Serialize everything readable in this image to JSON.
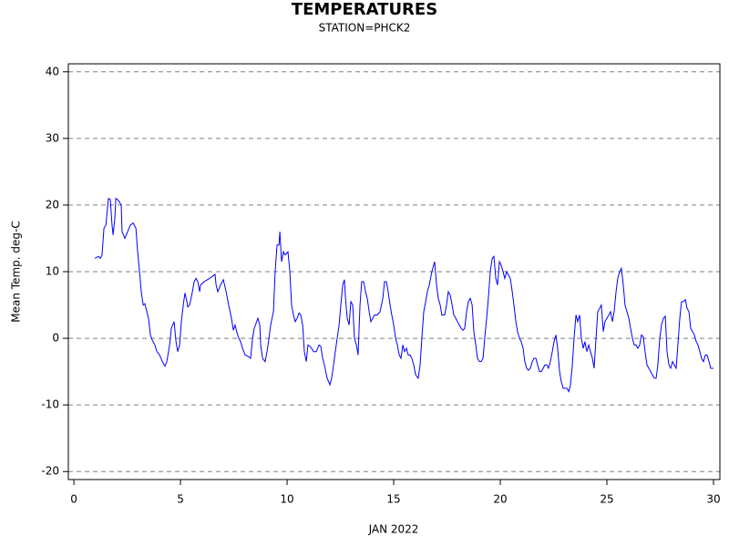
{
  "chart_data": {
    "type": "line",
    "title": "TEMPERATURES",
    "subtitle": "STATION=PHCK2",
    "x_label": "JAN 2022",
    "y_label": "Mean Temp. deg-C",
    "xlim": [
      -0.26,
      30.3
    ],
    "ylim": [
      -21.2,
      41.2
    ],
    "xticks": [
      0,
      5,
      10,
      15,
      20,
      25,
      30
    ],
    "yticks": [
      -20,
      -10,
      0,
      10,
      20,
      30,
      40
    ],
    "grid": true,
    "color": "#0000ff",
    "x": [
      0.98,
      1.15,
      1.24,
      1.32,
      1.41,
      1.5,
      1.62,
      1.71,
      1.79,
      1.84,
      1.92,
      1.97,
      2.09,
      2.22,
      2.26,
      2.39,
      2.52,
      2.65,
      2.78,
      2.91,
      2.99,
      3.08,
      3.16,
      3.25,
      3.33,
      3.42,
      3.5,
      3.59,
      3.68,
      3.8,
      3.89,
      4.02,
      4.15,
      4.27,
      4.36,
      4.49,
      4.57,
      4.7,
      4.79,
      4.87,
      4.96,
      5.04,
      5.13,
      5.21,
      5.3,
      5.34,
      5.43,
      5.56,
      5.64,
      5.73,
      5.81,
      5.9,
      5.94,
      6.11,
      6.37,
      6.62,
      6.67,
      6.75,
      6.88,
      7.01,
      7.14,
      7.26,
      7.39,
      7.48,
      7.56,
      7.65,
      7.74,
      7.82,
      7.91,
      8.03,
      8.16,
      8.29,
      8.38,
      8.46,
      8.63,
      8.72,
      8.76,
      8.85,
      8.97,
      9.06,
      9.15,
      9.23,
      9.36,
      9.44,
      9.53,
      9.62,
      9.66,
      9.74,
      9.83,
      9.91,
      10.04,
      10.13,
      10.21,
      10.3,
      10.38,
      10.47,
      10.56,
      10.64,
      10.73,
      10.81,
      10.9,
      10.98,
      11.07,
      11.15,
      11.24,
      11.37,
      11.5,
      11.58,
      11.67,
      11.75,
      11.88,
      12.01,
      12.09,
      12.18,
      12.26,
      12.35,
      12.44,
      12.52,
      12.61,
      12.69,
      12.74,
      12.82,
      12.91,
      12.99,
      13.08,
      13.16,
      13.25,
      13.33,
      13.42,
      13.5,
      13.59,
      13.68,
      13.76,
      13.85,
      13.93,
      14.02,
      14.1,
      14.23,
      14.36,
      14.49,
      14.57,
      14.66,
      14.74,
      14.83,
      14.91,
      15.0,
      15.09,
      15.17,
      15.26,
      15.34,
      15.43,
      15.51,
      15.6,
      15.68,
      15.77,
      15.85,
      15.94,
      16.03,
      16.15,
      16.24,
      16.32,
      16.41,
      16.5,
      16.58,
      16.67,
      16.79,
      16.92,
      17.01,
      17.09,
      17.18,
      17.26,
      17.39,
      17.48,
      17.56,
      17.65,
      17.74,
      17.82,
      17.91,
      17.99,
      18.08,
      18.16,
      18.25,
      18.33,
      18.42,
      18.5,
      18.59,
      18.68,
      18.76,
      18.85,
      18.93,
      19.02,
      19.1,
      19.19,
      19.27,
      19.36,
      19.44,
      19.53,
      19.62,
      19.7,
      19.79,
      19.87,
      19.96,
      20.04,
      20.13,
      20.21,
      20.3,
      20.38,
      20.47,
      20.56,
      20.64,
      20.73,
      20.81,
      20.9,
      20.98,
      21.07,
      21.15,
      21.24,
      21.32,
      21.41,
      21.5,
      21.58,
      21.67,
      21.75,
      21.84,
      21.92,
      22.01,
      22.09,
      22.18,
      22.26,
      22.35,
      22.44,
      22.52,
      22.61,
      22.69,
      22.78,
      22.86,
      22.95,
      23.03,
      23.12,
      23.21,
      23.29,
      23.38,
      23.46,
      23.55,
      23.63,
      23.72,
      23.8,
      23.89,
      23.97,
      24.06,
      24.15,
      24.23,
      24.32,
      24.4,
      24.49,
      24.57,
      24.66,
      24.74,
      24.83,
      24.91,
      25.0,
      25.09,
      25.17,
      25.26,
      25.34,
      25.43,
      25.51,
      25.6,
      25.68,
      25.77,
      25.85,
      25.94,
      26.03,
      26.11,
      26.2,
      26.28,
      26.37,
      26.45,
      26.54,
      26.62,
      26.71,
      26.79,
      26.88,
      26.97,
      27.05,
      27.14,
      27.22,
      27.31,
      27.39,
      27.48,
      27.56,
      27.65,
      27.74,
      27.82,
      27.91,
      27.99,
      28.08,
      28.16,
      28.25,
      28.33,
      28.42,
      28.5,
      28.59,
      28.68,
      28.76,
      28.85,
      28.93,
      29.02,
      29.1,
      29.19,
      29.27,
      29.36,
      29.44,
      29.53,
      29.62,
      29.7,
      29.79,
      29.87,
      30.0
    ],
    "values": [
      12,
      12.3,
      12,
      12.5,
      16.5,
      17,
      21,
      20.8,
      17,
      15.5,
      18,
      21,
      20.7,
      20,
      16,
      15,
      16,
      17,
      17.3,
      16.5,
      13,
      10,
      7,
      5,
      5.2,
      4,
      3,
      0.5,
      -0.3,
      -1,
      -2,
      -2.5,
      -3.5,
      -4.2,
      -3.5,
      -1,
      1.5,
      2.5,
      -0.5,
      -2,
      -1,
      2.5,
      5,
      6.8,
      5.5,
      4.7,
      5,
      7,
      8.5,
      9,
      8.5,
      7,
      8,
      8.5,
      9,
      9.6,
      8,
      7,
      8,
      8.8,
      7,
      5,
      3,
      1.2,
      2,
      0.8,
      0,
      -0.5,
      -1.5,
      -2.5,
      -2.7,
      -3,
      0,
      1.5,
      3,
      2,
      -1,
      -3,
      -3.5,
      -2,
      0,
      2,
      4,
      10,
      14,
      14,
      16,
      11.5,
      13,
      12.5,
      13,
      10,
      5,
      3.5,
      2.5,
      3,
      3.8,
      3.5,
      2,
      -2,
      -3.5,
      -1,
      -1.2,
      -1.5,
      -2,
      -2,
      -1,
      -1.2,
      -3,
      -4,
      -6,
      -7,
      -6,
      -4,
      -2,
      0,
      2,
      5,
      8,
      8.8,
      6,
      3,
      2,
      5.5,
      5,
      0,
      -1,
      -2.5,
      5,
      8.5,
      8.5,
      7,
      6,
      4,
      2.5,
      3,
      3.5,
      3.5,
      4,
      6,
      8.5,
      8.5,
      7,
      5,
      3.5,
      2,
      0,
      -1,
      -2.5,
      -3,
      -1,
      -2,
      -1.5,
      -2.5,
      -2.5,
      -3,
      -4,
      -5.5,
      -6,
      -4,
      0,
      4,
      5.5,
      7,
      8,
      10,
      11.5,
      8,
      6,
      5,
      3.5,
      3.5,
      5,
      7,
      6.5,
      5,
      3.5,
      3,
      2.5,
      2,
      1.5,
      1.2,
      1.5,
      4,
      5.5,
      6,
      5,
      1,
      -1,
      -3,
      -3.5,
      -3.5,
      -3,
      0,
      3,
      6,
      10,
      12,
      12.3,
      9,
      8,
      11.5,
      11,
      10,
      9,
      10,
      9.5,
      9,
      7,
      5,
      2.5,
      1,
      0,
      -0.5,
      -1.5,
      -3.5,
      -4.5,
      -4.8,
      -4.5,
      -3.5,
      -3,
      -3,
      -4,
      -5,
      -5,
      -4.5,
      -4,
      -4,
      -4.5,
      -3.5,
      -2,
      -0.5,
      0.5,
      -1.5,
      -5,
      -6.5,
      -7.5,
      -7.5,
      -7.5,
      -8,
      -7,
      -4,
      0,
      3.5,
      2.5,
      3.5,
      0,
      -1.5,
      -0.5,
      -2,
      -1,
      -2,
      -3,
      -4.5,
      0,
      4,
      4.5,
      5,
      1,
      2.5,
      3,
      3.5,
      4,
      2.5,
      4,
      7,
      9,
      10,
      10.5,
      8,
      5,
      4,
      3,
      1.5,
      0,
      -1,
      -1,
      -1.5,
      -1,
      0.5,
      0.2,
      -2,
      -4,
      -4.5,
      -5,
      -5.5,
      -6,
      -6,
      -4,
      0,
      2,
      3,
      3.3,
      -2,
      -4,
      -4.5,
      -3.5,
      -4,
      -4.5,
      -1,
      3,
      5.5,
      5.5,
      5.8,
      4.5,
      4,
      1.5,
      1,
      0.5,
      -0.5,
      -1,
      -2,
      -3,
      -3.5,
      -2.5,
      -2.5,
      -3.5,
      -4.5,
      -4.5
    ]
  }
}
